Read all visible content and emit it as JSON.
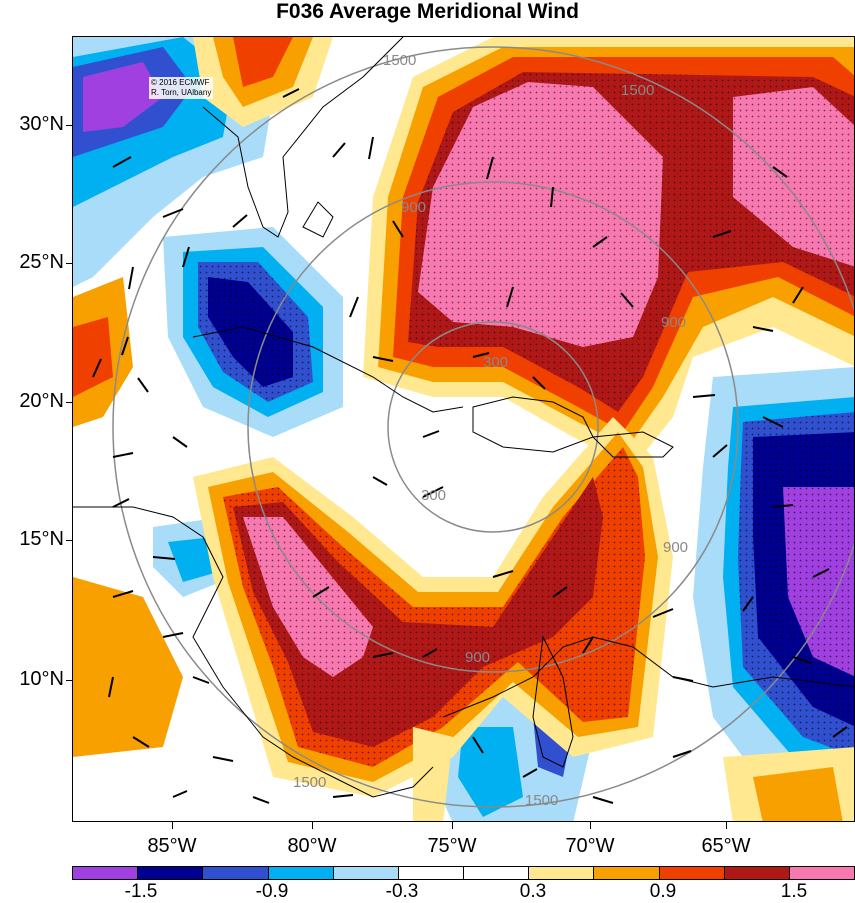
{
  "title": "F036 Average Meridional Wind",
  "copyright": [
    "© 2016 ECMWF",
    "R. Torn, UAlbany"
  ],
  "latitude_labels": [
    "30°N",
    "25°N",
    "20°N",
    "15°N",
    "10°N"
  ],
  "longitude_labels": [
    "85°W",
    "80°W",
    "75°W",
    "70°W",
    "65°W"
  ],
  "range_ring_labels": [
    "300",
    "900",
    "1500"
  ],
  "colorbar": {
    "colors": [
      "#a040e0",
      "#000090",
      "#3050d0",
      "#00b0f0",
      "#a8dcf8",
      "#ffffff",
      "#ffffff",
      "#ffe890",
      "#f8a000",
      "#f04000",
      "#b01818",
      "#f878b0"
    ],
    "labels": [
      "-1.5",
      "-0.9",
      "-0.3",
      "0.3",
      "0.9",
      "1.5"
    ]
  }
}
